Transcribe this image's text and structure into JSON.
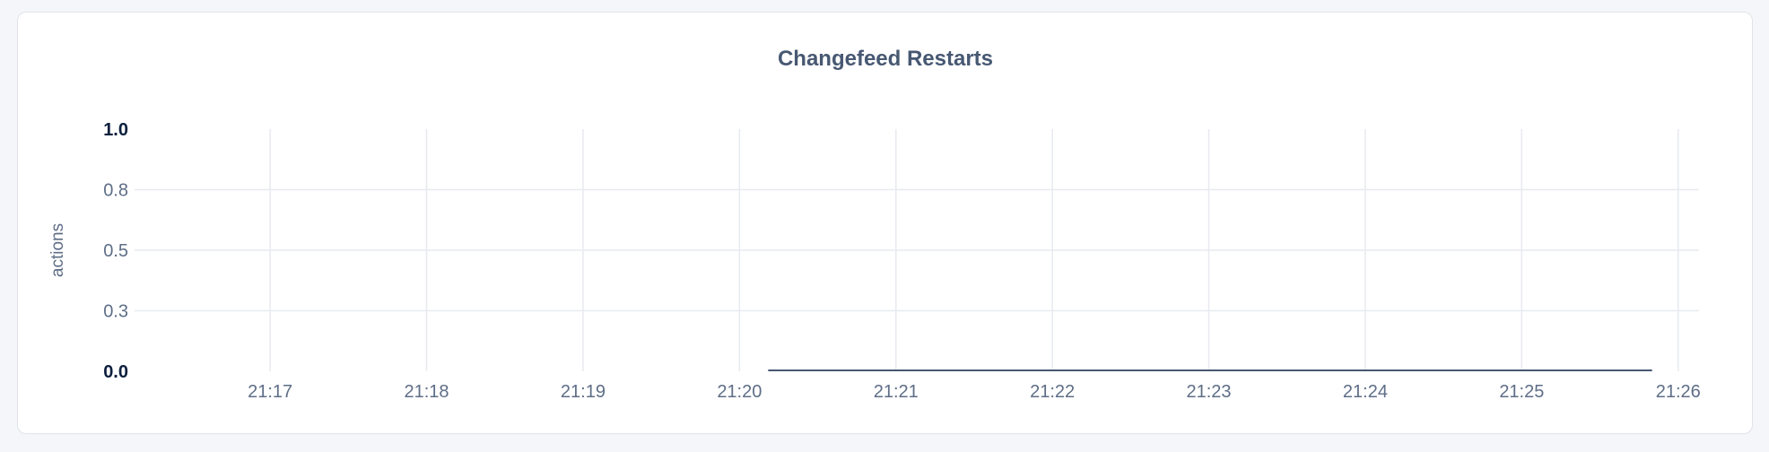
{
  "chart_data": {
    "type": "line",
    "title": "Changefeed Restarts",
    "ylabel": "actions",
    "xlabel": "",
    "ylim": [
      0,
      1
    ],
    "xlim": [
      "21:16:08",
      "21:26:08"
    ],
    "yticks": [
      "0.0",
      "0.3",
      "0.5",
      "0.8",
      "1.0"
    ],
    "ytick_values": [
      0,
      0.25,
      0.5,
      0.75,
      1
    ],
    "xticks": [
      "21:17",
      "21:18",
      "21:19",
      "21:20",
      "21:21",
      "21:22",
      "21:23",
      "21:24",
      "21:25",
      "21:26"
    ],
    "grid": true,
    "series": [
      {
        "x": [
          "21:20:11",
          "21:25:50"
        ],
        "y": [
          0,
          0
        ],
        "color": "#475872"
      }
    ],
    "colors": {
      "title": "#475872",
      "tick": "#5e6e87",
      "tick_bold": "#0c1f3d",
      "grid": "#e7eaf0"
    }
  }
}
